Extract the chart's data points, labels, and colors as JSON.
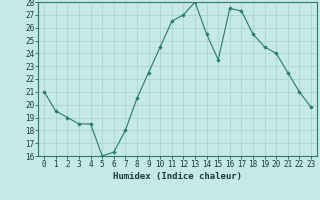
{
  "x": [
    0,
    1,
    2,
    3,
    4,
    5,
    6,
    7,
    8,
    9,
    10,
    11,
    12,
    13,
    14,
    15,
    16,
    17,
    18,
    19,
    20,
    21,
    22,
    23
  ],
  "y": [
    21,
    19.5,
    19,
    18.5,
    18.5,
    16,
    16.3,
    18,
    20.5,
    22.5,
    24.5,
    26.5,
    27,
    28,
    25.5,
    23.5,
    27.5,
    27.3,
    25.5,
    24.5,
    24,
    22.5,
    21,
    19.8
  ],
  "line_color": "#2a7a6a",
  "marker_color": "#2a7a6a",
  "bg_color": "#c5e8e8",
  "grid_color": "#a8d0d0",
  "xlabel": "Humidex (Indice chaleur)",
  "ylim": [
    16,
    28
  ],
  "yticks": [
    16,
    17,
    18,
    19,
    20,
    21,
    22,
    23,
    24,
    25,
    26,
    27,
    28
  ],
  "xticks": [
    0,
    1,
    2,
    3,
    4,
    5,
    6,
    7,
    8,
    9,
    10,
    11,
    12,
    13,
    14,
    15,
    16,
    17,
    18,
    19,
    20,
    21,
    22,
    23
  ],
  "xlabel_fontsize": 6.5,
  "tick_fontsize": 5.5
}
